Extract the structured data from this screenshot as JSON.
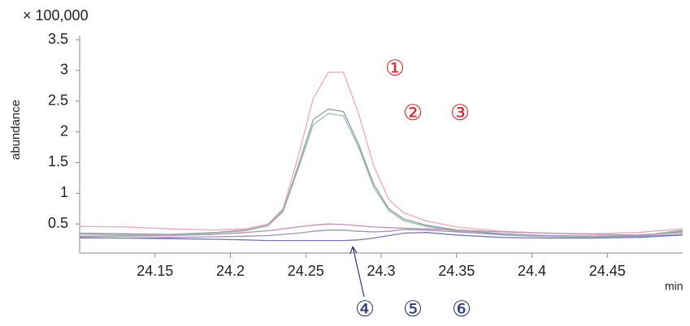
{
  "chart_data": {
    "type": "line",
    "y_multiplier_label": "× 100,000",
    "y_label": "abundance",
    "x_label": "min",
    "x": [
      24.1,
      24.13,
      24.16,
      24.19,
      24.21,
      24.225,
      24.235,
      24.245,
      24.255,
      24.265,
      24.275,
      24.285,
      24.295,
      24.305,
      24.315,
      24.33,
      24.35,
      24.38,
      24.41,
      24.44,
      24.47,
      24.5
    ],
    "series": [
      {
        "name": "①",
        "color": "#f2a6b6",
        "label_color": "#e3262e",
        "values": [
          0.46,
          0.45,
          0.42,
          0.4,
          0.42,
          0.5,
          0.75,
          1.6,
          2.55,
          2.97,
          2.97,
          2.3,
          1.45,
          0.9,
          0.68,
          0.55,
          0.45,
          0.38,
          0.35,
          0.34,
          0.36,
          0.42
        ]
      },
      {
        "name": "②",
        "color": "#8e9aa2",
        "label_color": "#e3262e",
        "values": [
          0.35,
          0.34,
          0.33,
          0.36,
          0.4,
          0.48,
          0.72,
          1.45,
          2.2,
          2.37,
          2.33,
          1.8,
          1.15,
          0.75,
          0.58,
          0.48,
          0.4,
          0.34,
          0.31,
          0.3,
          0.31,
          0.38
        ]
      },
      {
        "name": "③",
        "color": "#9cbcb2",
        "label_color": "#e3262e",
        "values": [
          0.33,
          0.32,
          0.32,
          0.35,
          0.39,
          0.47,
          0.7,
          1.4,
          2.12,
          2.3,
          2.26,
          1.75,
          1.1,
          0.72,
          0.55,
          0.46,
          0.38,
          0.32,
          0.29,
          0.28,
          0.3,
          0.4
        ]
      },
      {
        "name": "④",
        "color": "#c08fb0",
        "label_color": "#2f3a82",
        "values": [
          0.3,
          0.3,
          0.31,
          0.33,
          0.36,
          0.39,
          0.42,
          0.45,
          0.48,
          0.5,
          0.49,
          0.47,
          0.45,
          0.44,
          0.43,
          0.42,
          0.4,
          0.37,
          0.35,
          0.33,
          0.32,
          0.36
        ]
      },
      {
        "name": "⑤",
        "color": "#9a92c8",
        "label_color": "#2f3a82",
        "values": [
          0.27,
          0.27,
          0.28,
          0.29,
          0.3,
          0.31,
          0.33,
          0.35,
          0.38,
          0.4,
          0.4,
          0.38,
          0.37,
          0.38,
          0.41,
          0.4,
          0.37,
          0.33,
          0.31,
          0.3,
          0.3,
          0.33
        ]
      },
      {
        "name": "⑥",
        "color": "#6f7cb4",
        "label_color": "#2f3a82",
        "values": [
          0.28,
          0.27,
          0.26,
          0.25,
          0.24,
          0.23,
          0.23,
          0.23,
          0.23,
          0.23,
          0.23,
          0.24,
          0.27,
          0.31,
          0.35,
          0.36,
          0.32,
          0.28,
          0.27,
          0.27,
          0.28,
          0.32
        ]
      }
    ],
    "xlim": [
      24.1,
      24.5
    ],
    "ylim": [
      0,
      3.5
    ],
    "xticks": [
      24.15,
      24.2,
      24.25,
      24.3,
      24.35,
      24.4,
      24.45
    ],
    "yticks": [
      0.5,
      1,
      1.5,
      2,
      2.5,
      3,
      3.5
    ]
  }
}
